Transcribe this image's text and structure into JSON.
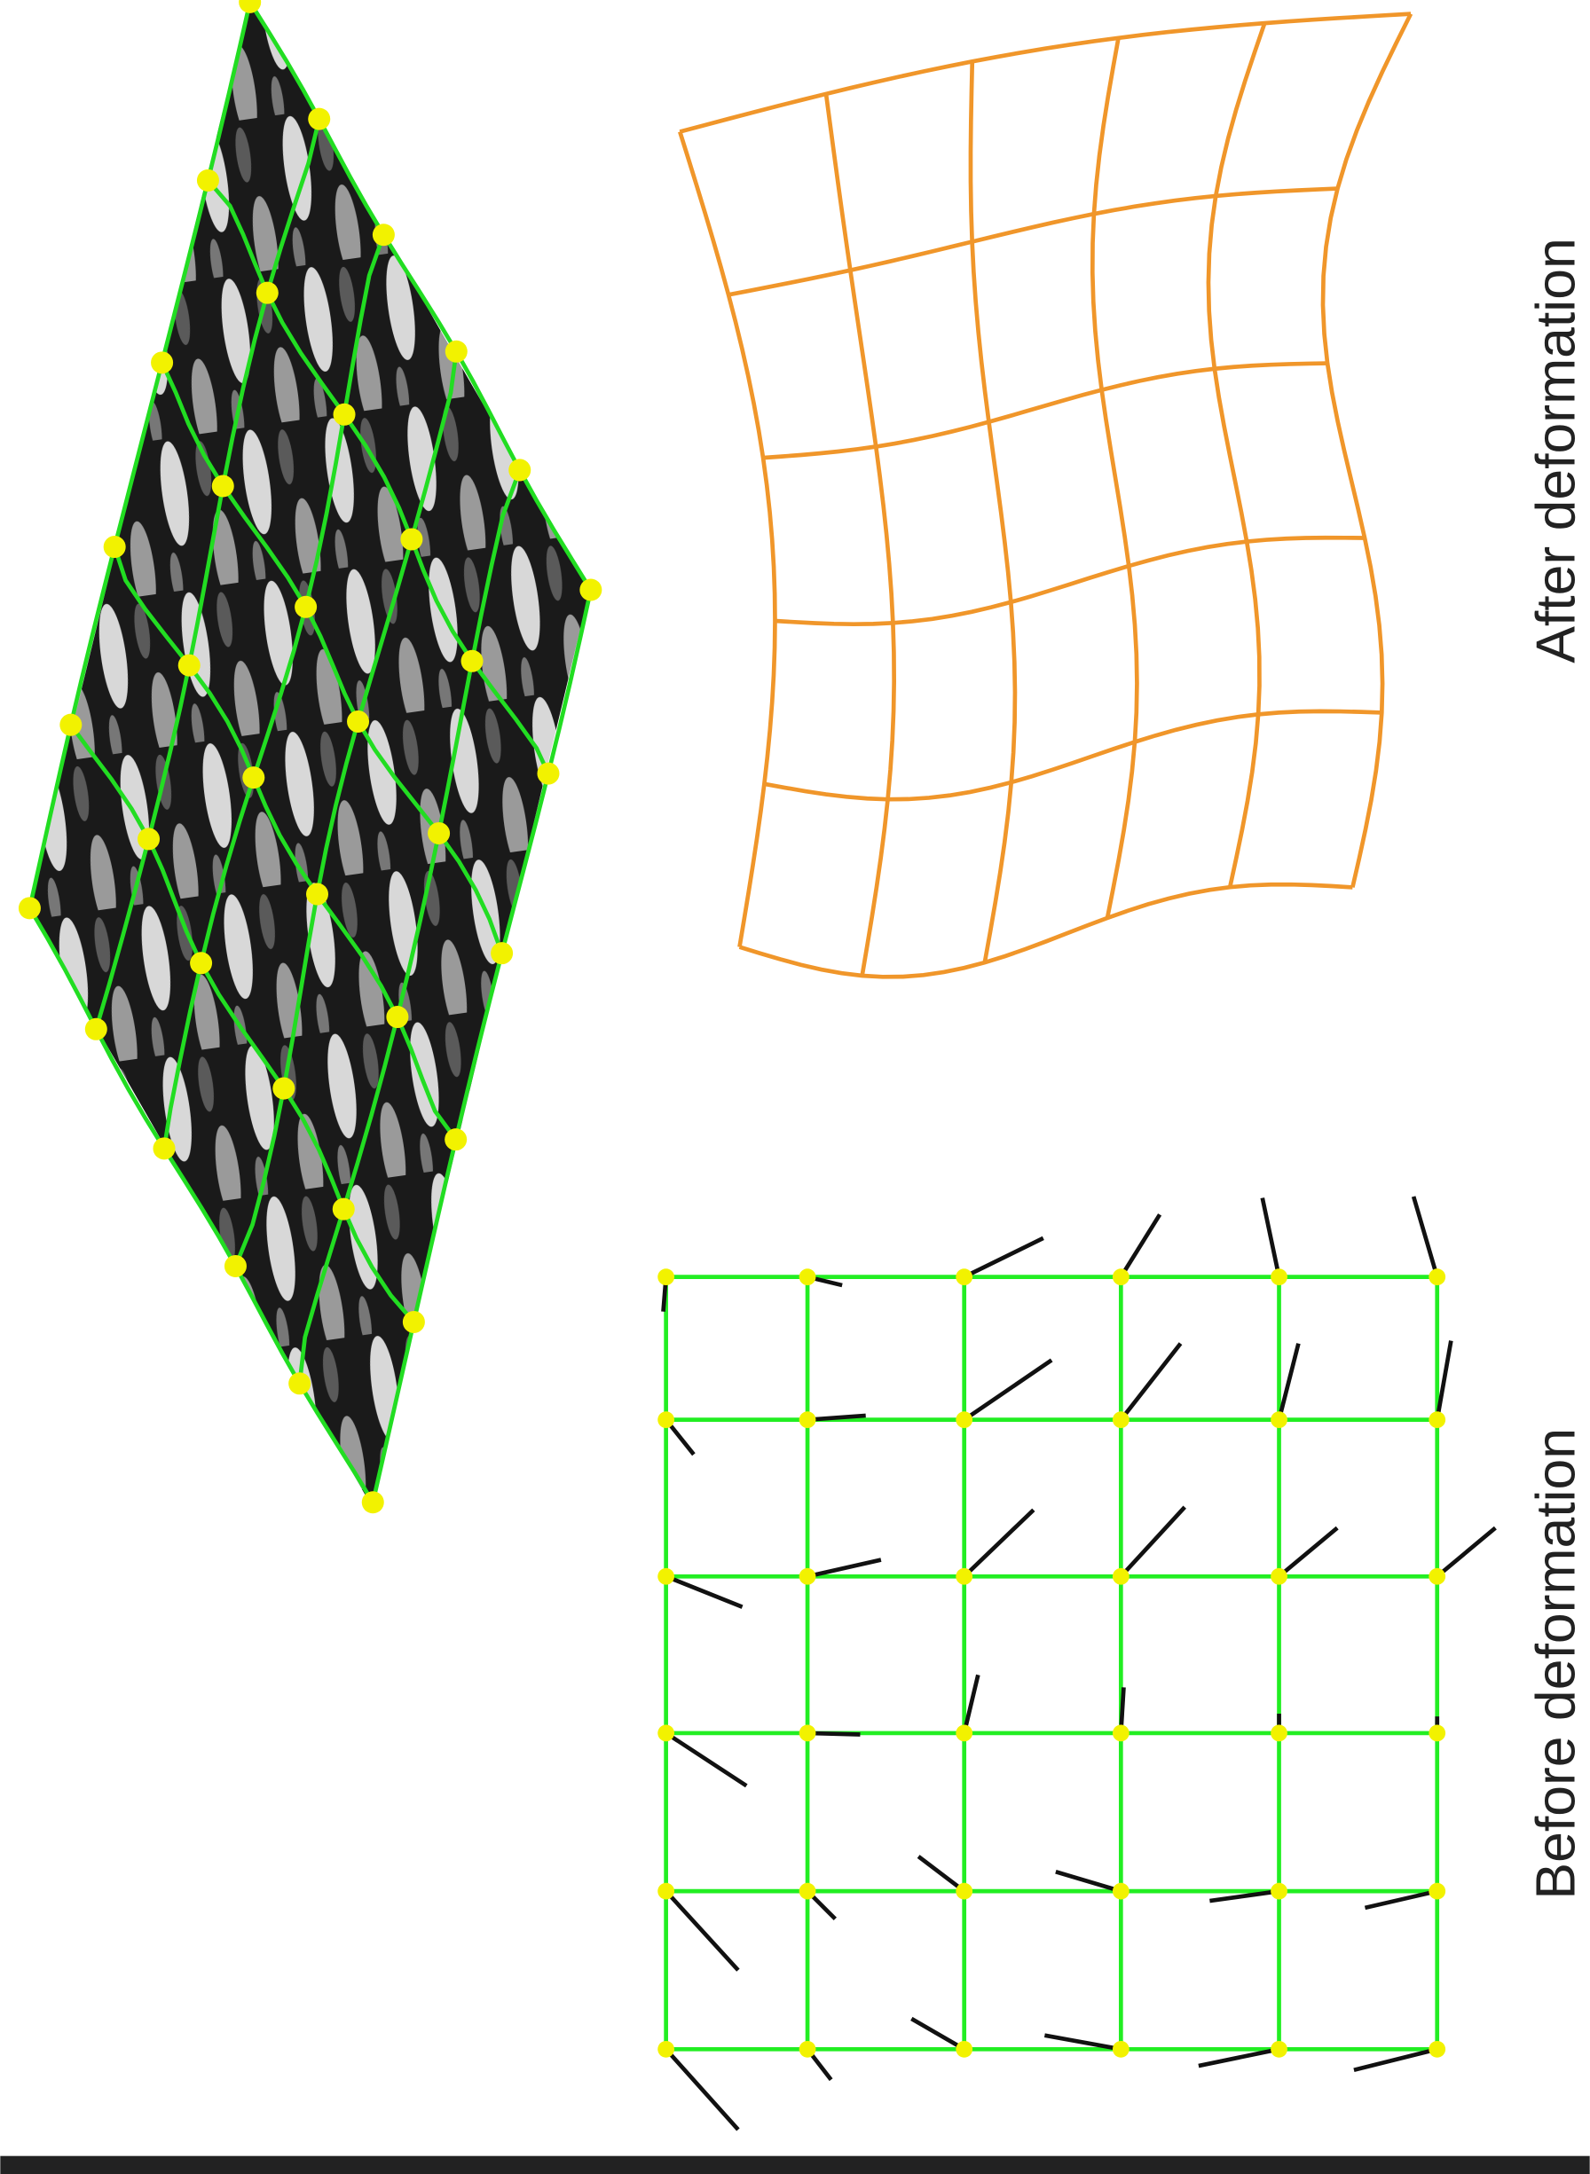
{
  "labels": {
    "after": "After deformation",
    "before": "Before deformation"
  }
}
